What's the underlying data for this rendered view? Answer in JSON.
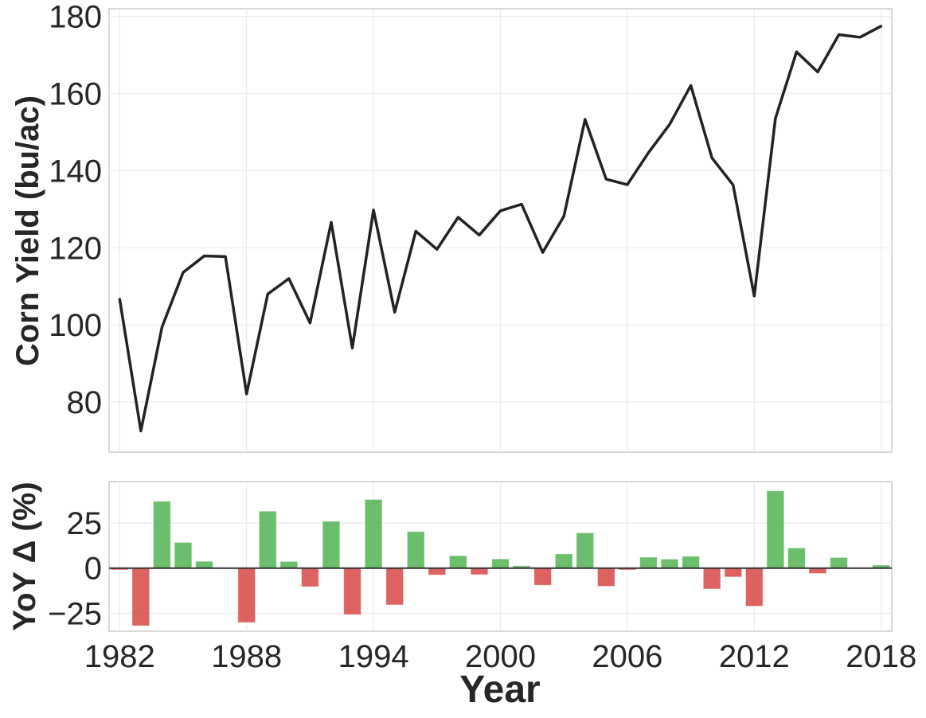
{
  "chart_data": [
    {
      "type": "line",
      "ylabel": "Corn Yield (bu/ac)",
      "ylim": [
        67,
        182
      ],
      "xlim": [
        1981.5,
        1018.5
      ],
      "yticks": [
        80,
        100,
        120,
        140,
        160,
        180
      ],
      "grid": true,
      "line_color": "#222222",
      "x": [
        1982,
        1983,
        1984,
        1985,
        1986,
        1987,
        1988,
        1989,
        1990,
        1991,
        1992,
        1993,
        1994,
        1995,
        1996,
        1997,
        1998,
        1999,
        2000,
        2001,
        2002,
        2003,
        2004,
        2005,
        2006,
        2007,
        2008,
        2009,
        2010,
        2011,
        2012,
        2013,
        2014,
        2015,
        2016,
        2017,
        2018
      ],
      "values": [
        106.7,
        72.5,
        99.4,
        113.6,
        117.9,
        117.7,
        82.1,
        108.0,
        112.0,
        100.5,
        126.6,
        94.0,
        129.8,
        103.3,
        124.3,
        119.6,
        127.9,
        123.3,
        129.6,
        131.3,
        118.8,
        128.2,
        153.3,
        137.8,
        136.4,
        144.7,
        152.0,
        162.1,
        143.3,
        136.3,
        107.5,
        153.6,
        170.8,
        165.6,
        175.3,
        174.6,
        177.5
      ]
    },
    {
      "type": "bar",
      "ylabel": "YoY Δ (%)",
      "xlabel": "Year",
      "ylim": [
        -35,
        48
      ],
      "yticks": [
        -25,
        0,
        25
      ],
      "ytick_labels": [
        "−25",
        "0",
        "25"
      ],
      "xticks": [
        1982,
        1988,
        1994,
        2000,
        2006,
        2012,
        2018
      ],
      "grid": true,
      "positive_color": "#5cb85c",
      "negative_color": "#d9534f",
      "x": [
        1982,
        1983,
        1984,
        1985,
        1986,
        1987,
        1988,
        1989,
        1990,
        1991,
        1992,
        1993,
        1994,
        1995,
        1996,
        1997,
        1998,
        1999,
        2000,
        2001,
        2002,
        2003,
        2004,
        2005,
        2006,
        2007,
        2008,
        2009,
        2010,
        2011,
        2012,
        2013,
        2014,
        2015,
        2016,
        2017,
        2018
      ],
      "values": [
        -1.0,
        -32.0,
        37.1,
        14.3,
        3.8,
        -0.2,
        -30.2,
        31.6,
        3.7,
        -10.3,
        26.0,
        -25.8,
        38.1,
        -20.4,
        20.3,
        -3.8,
        6.9,
        -3.6,
        5.1,
        1.3,
        -9.5,
        7.9,
        19.6,
        -10.1,
        -1.0,
        6.1,
        5.0,
        6.6,
        -11.6,
        -4.9,
        -21.1,
        42.9,
        11.2,
        -3.0,
        5.9,
        -0.4,
        1.7
      ]
    }
  ]
}
